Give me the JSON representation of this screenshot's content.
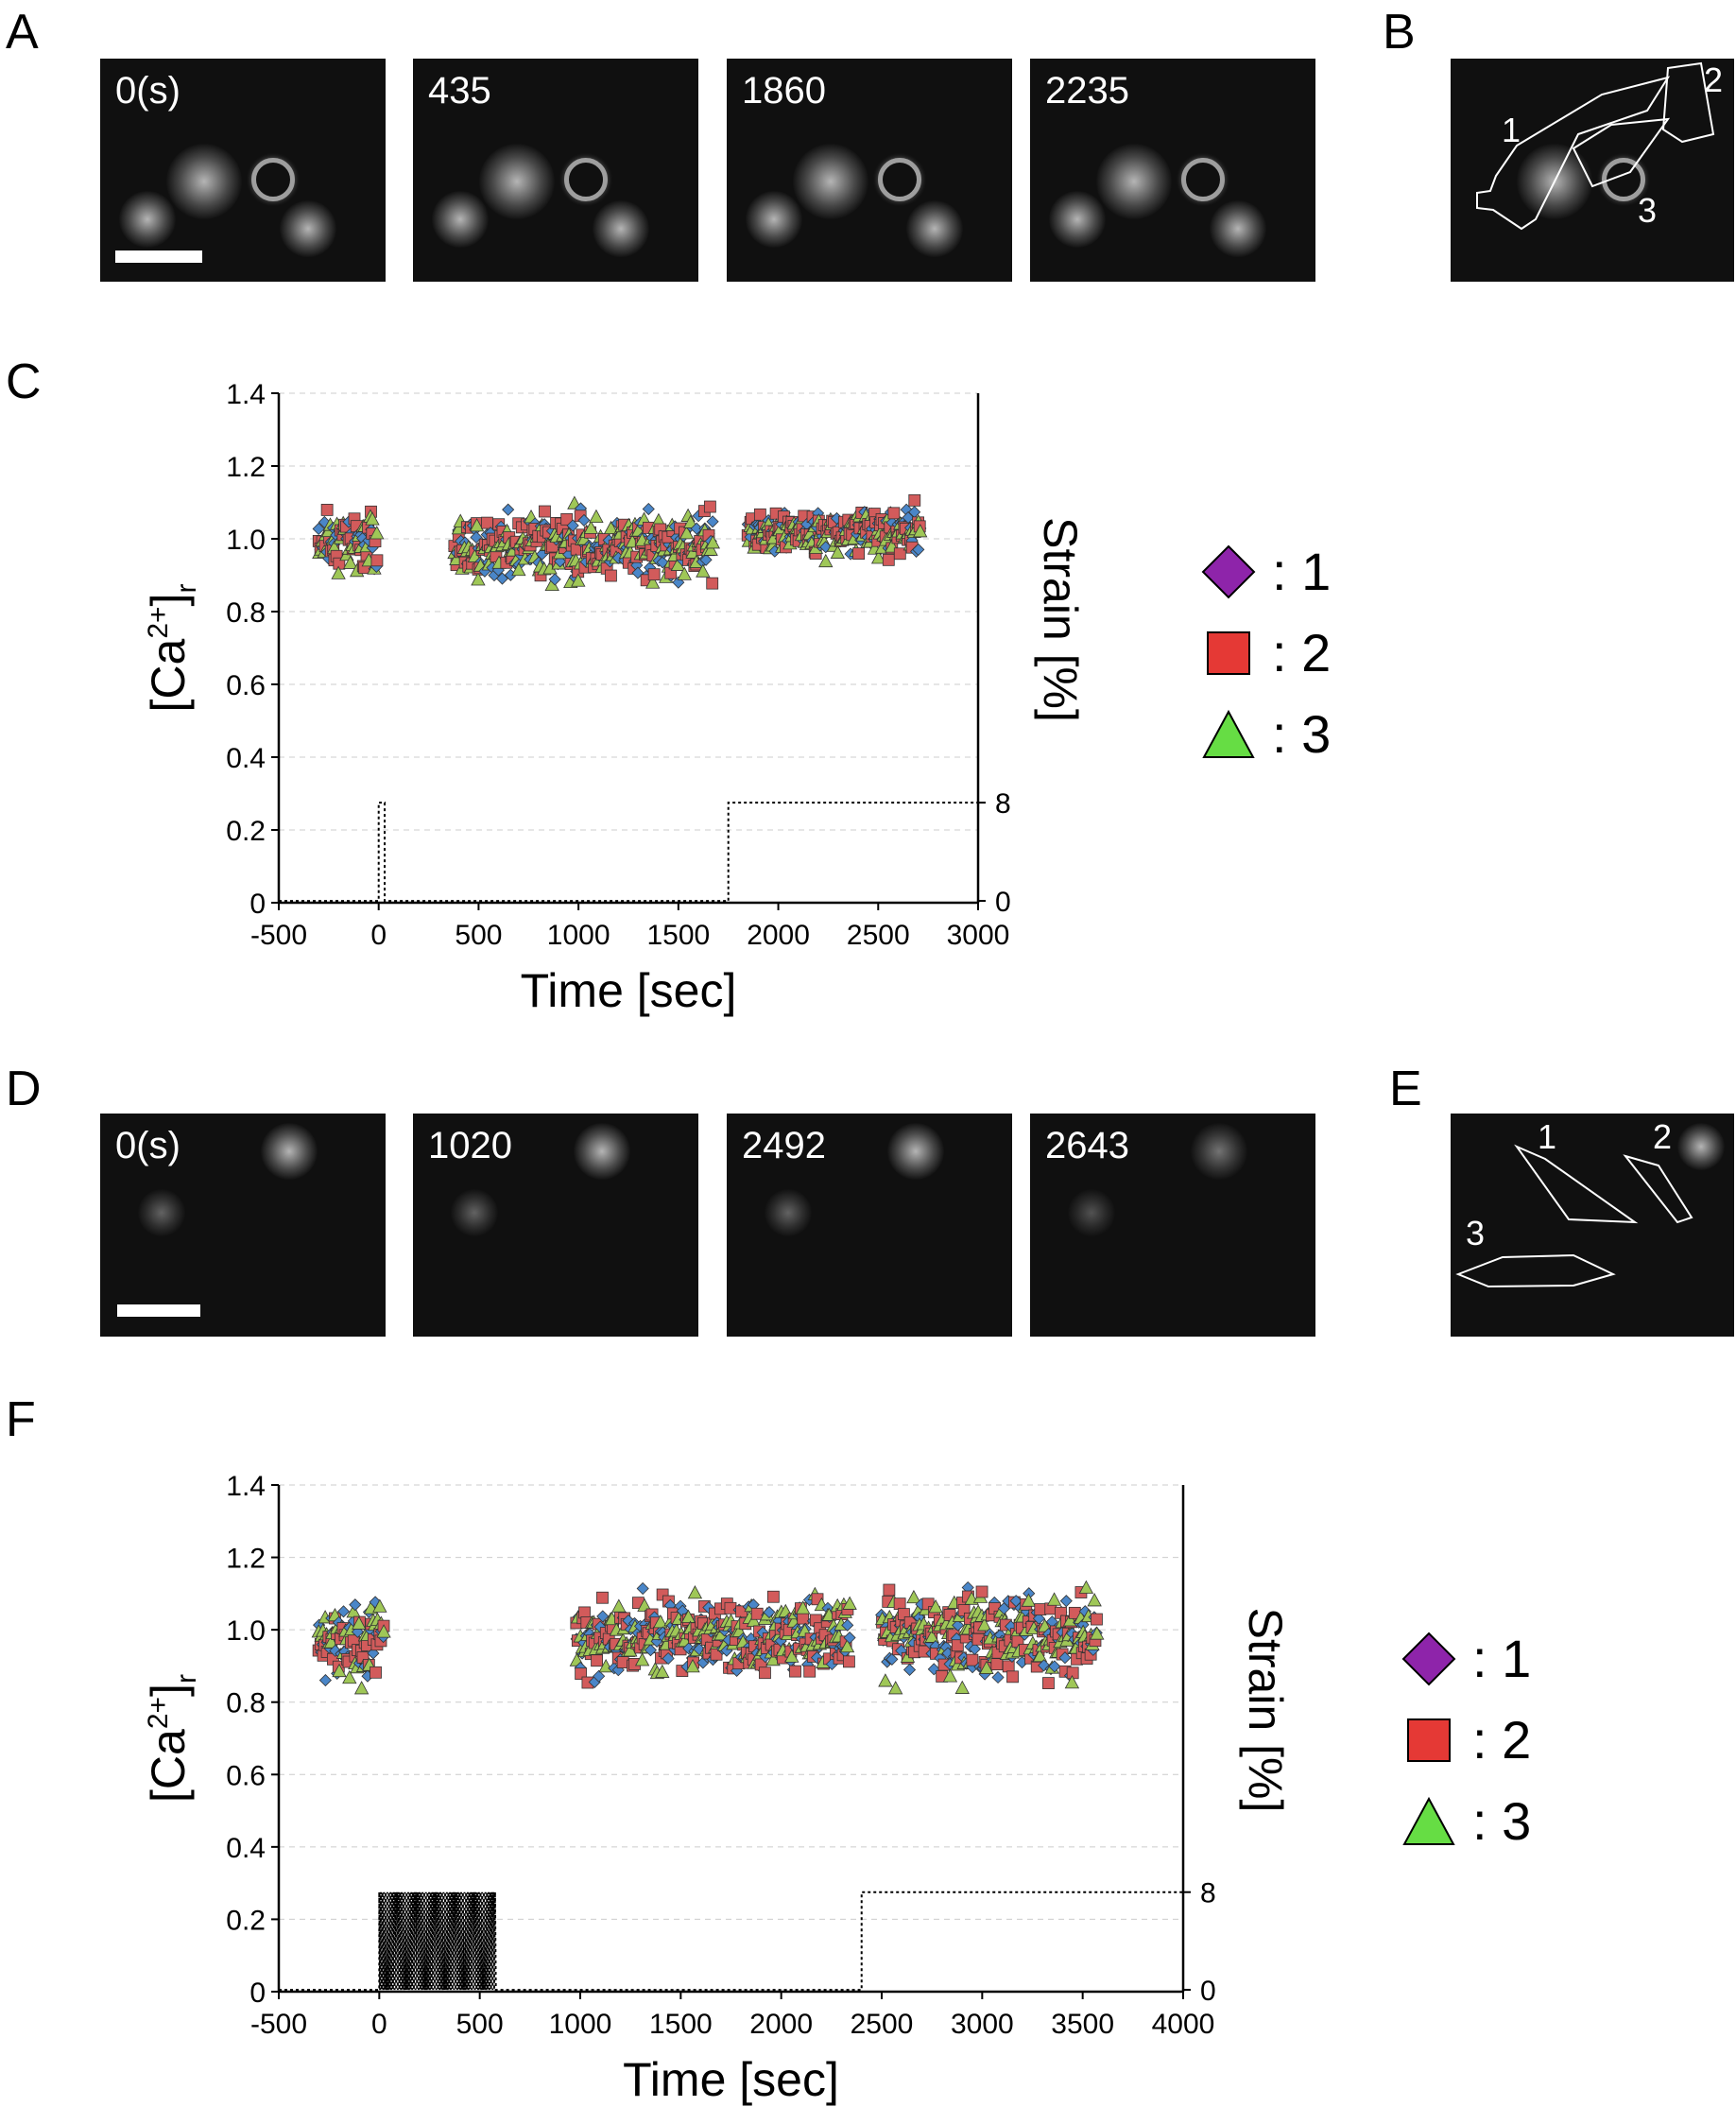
{
  "panel_letters": {
    "A": "A",
    "B": "B",
    "C": "C",
    "D": "D",
    "E": "E",
    "F": "F"
  },
  "panel_A": {
    "frames": [
      "0(s)",
      "435",
      "1860",
      "2235"
    ]
  },
  "panel_B": {
    "roi_labels": [
      "1",
      "2",
      "3"
    ]
  },
  "panel_D": {
    "frames": [
      "0(s)",
      "1020",
      "2492",
      "2643"
    ]
  },
  "panel_E": {
    "roi_labels": [
      "1",
      "2",
      "3"
    ]
  },
  "legend": [
    {
      "label": ": 1",
      "marker": "diamond",
      "color": "#7b1fa2"
    },
    {
      "label": ": 2",
      "marker": "square",
      "color": "#e53935"
    },
    {
      "label": ": 3",
      "marker": "triangle",
      "color": "#7ddc4a"
    }
  ],
  "colors": {
    "series1": "#4a86c8",
    "series2": "#d25b5b",
    "series3": "#9fc757",
    "legend1": "#8e24aa",
    "legend2": "#e53935",
    "legend3": "#66dd44"
  },
  "chart_data": [
    {
      "id": "C",
      "type": "scatter",
      "xlabel": "Time [sec]",
      "ylabel": "[Ca2+]r",
      "y2label": "Strain [%]",
      "xlim": [
        -500,
        3000
      ],
      "ylim": [
        0,
        1.4
      ],
      "xticks": [
        -500,
        0,
        500,
        1000,
        1500,
        2000,
        2500,
        3000
      ],
      "yticks": [
        0,
        0.2,
        0.4,
        0.6,
        0.8,
        1.0,
        1.2,
        1.4
      ],
      "y2ticks": [
        0,
        8
      ],
      "grid": "horizontal dashed",
      "segments": [
        {
          "x_start": -300,
          "x_end": 0,
          "mean": 1.0,
          "spread": 0.06
        },
        {
          "x_start": 380,
          "x_end": 1680,
          "mean": 0.98,
          "spread": 0.07
        },
        {
          "x_start": 1850,
          "x_end": 2720,
          "mean": 1.02,
          "spread": 0.05
        }
      ],
      "series": [
        {
          "name": "1",
          "marker": "diamond"
        },
        {
          "name": "2",
          "marker": "square"
        },
        {
          "name": "3",
          "marker": "triangle"
        }
      ],
      "strain": {
        "x": [
          -500,
          0,
          0,
          30,
          30,
          60,
          60,
          1750,
          1750,
          3000
        ],
        "y": [
          0,
          0,
          8,
          8,
          0,
          0,
          0,
          0,
          8,
          8
        ]
      }
    },
    {
      "id": "F",
      "type": "scatter",
      "xlabel": "Time [sec]",
      "ylabel": "[Ca2+]r",
      "y2label": "Strain [%]",
      "xlim": [
        -500,
        4000
      ],
      "ylim": [
        0,
        1.4
      ],
      "xticks": [
        -500,
        0,
        500,
        1000,
        1500,
        2000,
        2500,
        3000,
        3500,
        4000
      ],
      "yticks": [
        0,
        0.2,
        0.4,
        0.6,
        0.8,
        1.0,
        1.2,
        1.4
      ],
      "y2ticks": [
        0,
        8
      ],
      "grid": "horizontal dashed",
      "segments": [
        {
          "x_start": -300,
          "x_end": 30,
          "mean": 0.96,
          "spread": 0.09
        },
        {
          "x_start": 980,
          "x_end": 2350,
          "mean": 0.98,
          "spread": 0.08
        },
        {
          "x_start": 2500,
          "x_end": 3580,
          "mean": 0.98,
          "spread": 0.1
        }
      ],
      "series": [
        {
          "name": "1",
          "marker": "diamond"
        },
        {
          "name": "2",
          "marker": "square"
        },
        {
          "name": "3",
          "marker": "triangle"
        }
      ],
      "strain": {
        "oscillation_range": [
          0,
          580
        ],
        "x": [
          -500,
          0,
          580,
          2400,
          2400,
          4000
        ],
        "y": [
          0,
          8,
          0,
          0,
          8,
          8
        ]
      }
    }
  ]
}
